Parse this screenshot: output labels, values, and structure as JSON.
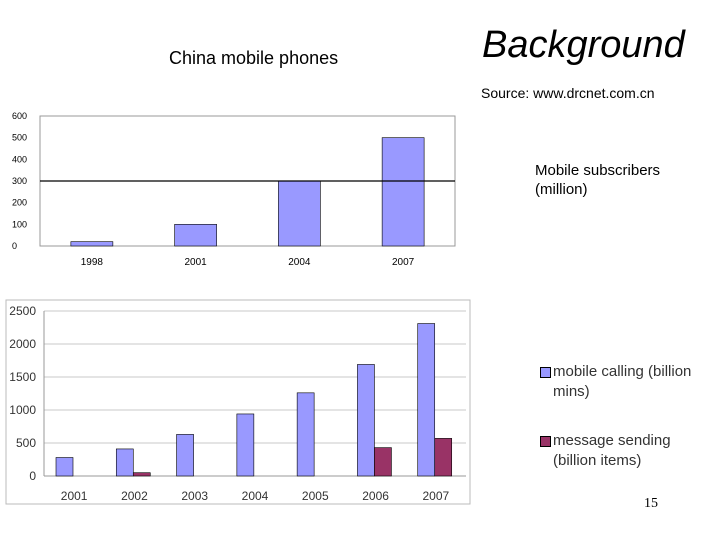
{
  "slide": {
    "title": "Background",
    "source": "Source: www.drcnet.com.cn",
    "page_number": "15"
  },
  "chart_data": [
    {
      "type": "bar",
      "title": "China mobile phones",
      "categories": [
        "1998",
        "2001",
        "2004",
        "2007"
      ],
      "series": [
        {
          "name": "Mobile subscribers (million)",
          "values": [
            20,
            100,
            300,
            500
          ],
          "color": "#9999ff"
        }
      ],
      "ylim": [
        0,
        600
      ],
      "yticks": [
        "0",
        "100",
        "200",
        "300",
        "400",
        "500",
        "600"
      ],
      "reference_line": 300,
      "grid": false,
      "legend": "right"
    },
    {
      "type": "bar",
      "categories": [
        "2001",
        "2002",
        "2003",
        "2004",
        "2005",
        "2006",
        "2007"
      ],
      "series": [
        {
          "name": "mobile calling (billion mins)",
          "values": [
            280,
            410,
            630,
            940,
            1260,
            1690,
            2310
          ],
          "color": "#9999ff"
        },
        {
          "name": "message sending (billion items)",
          "values": [
            0,
            50,
            0,
            0,
            0,
            430,
            570
          ],
          "color": "#993366"
        }
      ],
      "ylim": [
        0,
        2500
      ],
      "yticks": [
        "0",
        "500",
        "1000",
        "1500",
        "2000",
        "2500"
      ],
      "grid": true,
      "legend": "right"
    }
  ]
}
